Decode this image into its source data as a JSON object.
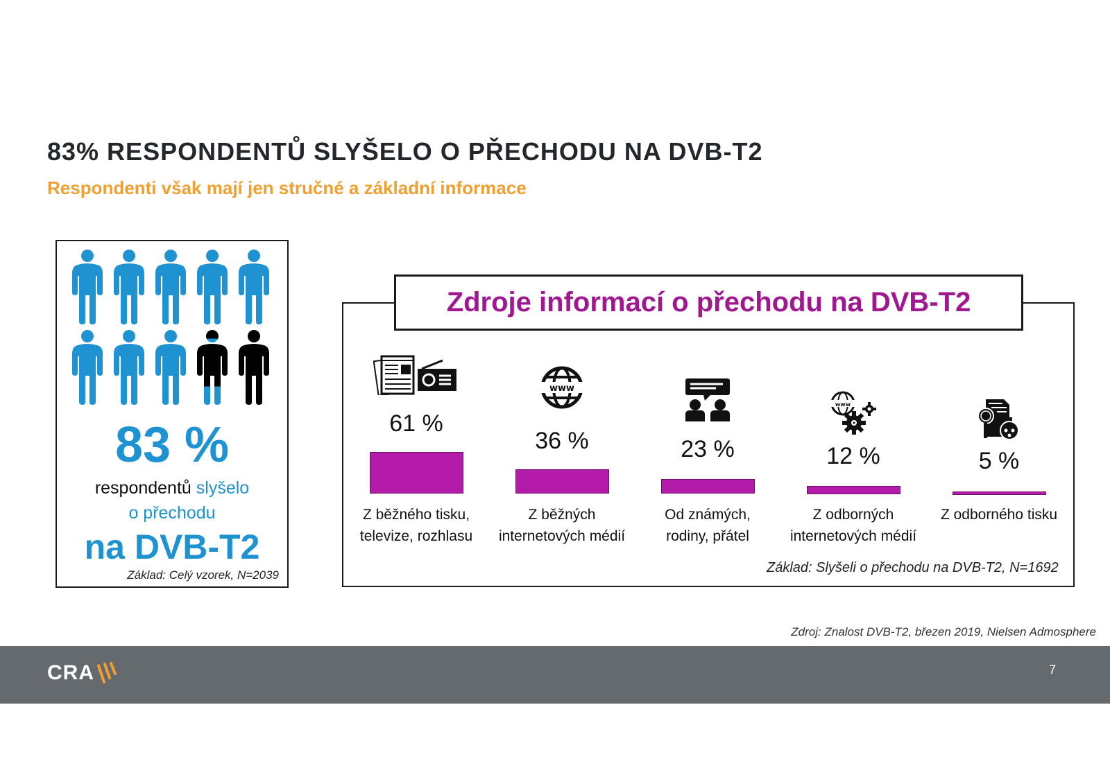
{
  "slide": {
    "title": "83% RESPONDENTŮ SLYŠELO O PŘECHODU NA DVB-T2",
    "subtitle": "Respondenti však mají jen stručné a základní informace"
  },
  "infographic": {
    "people_total": 10,
    "people_heard": 8.3,
    "icon_colors": {
      "heard": "#1f93d1",
      "not_heard": "#000000"
    },
    "percentage": "83 %",
    "line1_prefix": "respondentů ",
    "line1_highlight": "slyšelo",
    "line2": "o přechodu",
    "line3": "na DVB-T2",
    "base": "Základ: Celý vzorek, N=2039"
  },
  "chart": {
    "title": "Zdroje informací o přechodu na DVB-T2",
    "base": "Základ: Slyšeli o přechodu na DVB-T2, N=1692",
    "bar_color": "#b41baa",
    "items": [
      {
        "icon": "newspaper-radio-icon",
        "value_label": "61 %",
        "label_line1": "Z běžného tisku,",
        "label_line2": "televize, rozhlasu"
      },
      {
        "icon": "www-globe-icon",
        "value_label": "36 %",
        "label_line1": "Z běžných",
        "label_line2": "internetových médií"
      },
      {
        "icon": "people-conversation-icon",
        "value_label": "23 %",
        "label_line1": "Od známých,",
        "label_line2": "rodiny, přátel"
      },
      {
        "icon": "www-gears-icon",
        "value_label": "12 %",
        "label_line1": "Z odborných",
        "label_line2": "internetových médií"
      },
      {
        "icon": "research-document-icon",
        "value_label": "5 %",
        "label_line1": "Z odborného tisku",
        "label_line2": ""
      }
    ]
  },
  "chart_data": {
    "type": "bar",
    "title": "Zdroje informací o přechodu na DVB-T2",
    "categories": [
      "Z běžného tisku, televize, rozhlasu",
      "Z běžných internetových médií",
      "Od známých, rodiny, přátel",
      "Z odborných internetových médií",
      "Z odborného tisku"
    ],
    "values": [
      61,
      36,
      23,
      12,
      5
    ],
    "unit": "%",
    "xlabel": "",
    "ylabel": "",
    "ylim": [
      0,
      100
    ],
    "grid": false,
    "legend": null,
    "annotations": [
      "Základ: Slyšeli o přechodu na DVB-T2, N=1692"
    ],
    "secondary": {
      "type": "pictogram",
      "value": 83,
      "unit": "%",
      "label": "respondentů slyšelo o přechodu na DVB-T2",
      "base": "Základ: Celý vzorek, N=2039"
    }
  },
  "source": "Zdroj: Znalost DVB-T2, březen 2019, Nielsen Admosphere",
  "footer": {
    "logo_text": "CRA",
    "logo_accent_color": "#f0a030",
    "page_number": "7",
    "background": "#646a6d"
  }
}
